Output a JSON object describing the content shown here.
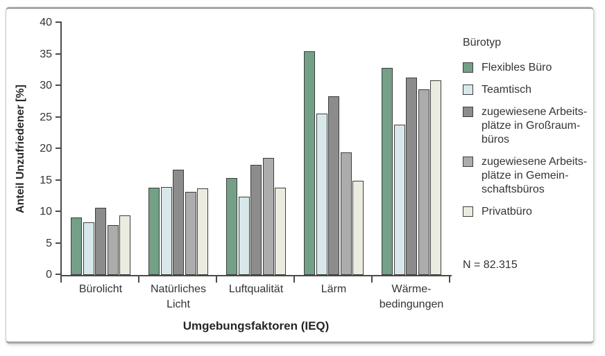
{
  "chart_data": {
    "type": "bar",
    "title": "",
    "ylabel": "Anteil Unzufriedener [%]",
    "xlabel": "Umgebungsfaktoren (IEQ)",
    "ylim": [
      0,
      40
    ],
    "yticks": [
      0,
      5,
      10,
      15,
      20,
      25,
      30,
      35,
      40
    ],
    "grid": false,
    "legend_position": "right",
    "legend_title": "Bürotyp",
    "annotation": "N = 82.315",
    "categories": [
      "Bürolicht",
      "Natürliches Licht",
      "Luftqualität",
      "Lärm",
      "Wärmebedingungen"
    ],
    "categories_display": [
      "Bürolicht",
      "Natürliches\nLicht",
      "Luftqualität",
      "Lärm",
      "Wärme-\nbedingungen"
    ],
    "series": [
      {
        "name": "Flexibles Büro",
        "display": "Flexibles Büro",
        "color": "#73A087",
        "values": [
          9.1,
          13.8,
          15.4,
          35.5,
          32.9
        ]
      },
      {
        "name": "Teamtisch",
        "display": "Teamtisch",
        "color": "#D8E7EA",
        "values": [
          8.4,
          14.0,
          12.4,
          25.6,
          23.8
        ]
      },
      {
        "name": "zugewiesene Arbeitsplätze in Großraumbüros",
        "display": "zugewiesene Arbeits-\nplätze in Großraum-\nbüros",
        "color": "#8C8C8C",
        "values": [
          10.7,
          16.7,
          17.5,
          28.4,
          31.3
        ]
      },
      {
        "name": "zugewiesene Arbeitsplätze in Gemeinschaftsbüros",
        "display": "zugewiesene Arbeits-\nplätze in Gemein-\nschaftsbüros",
        "color": "#ACACAC",
        "values": [
          7.9,
          13.2,
          18.6,
          19.4,
          29.4
        ]
      },
      {
        "name": "Privatbüro",
        "display": "Privatbüro",
        "color": "#EBEBE0",
        "values": [
          9.4,
          13.7,
          13.8,
          14.9,
          30.9
        ]
      }
    ]
  },
  "style": {
    "bar_outline": "#3D3D3D",
    "axis_color": "#4A4A4A",
    "text_color": "#333333"
  }
}
